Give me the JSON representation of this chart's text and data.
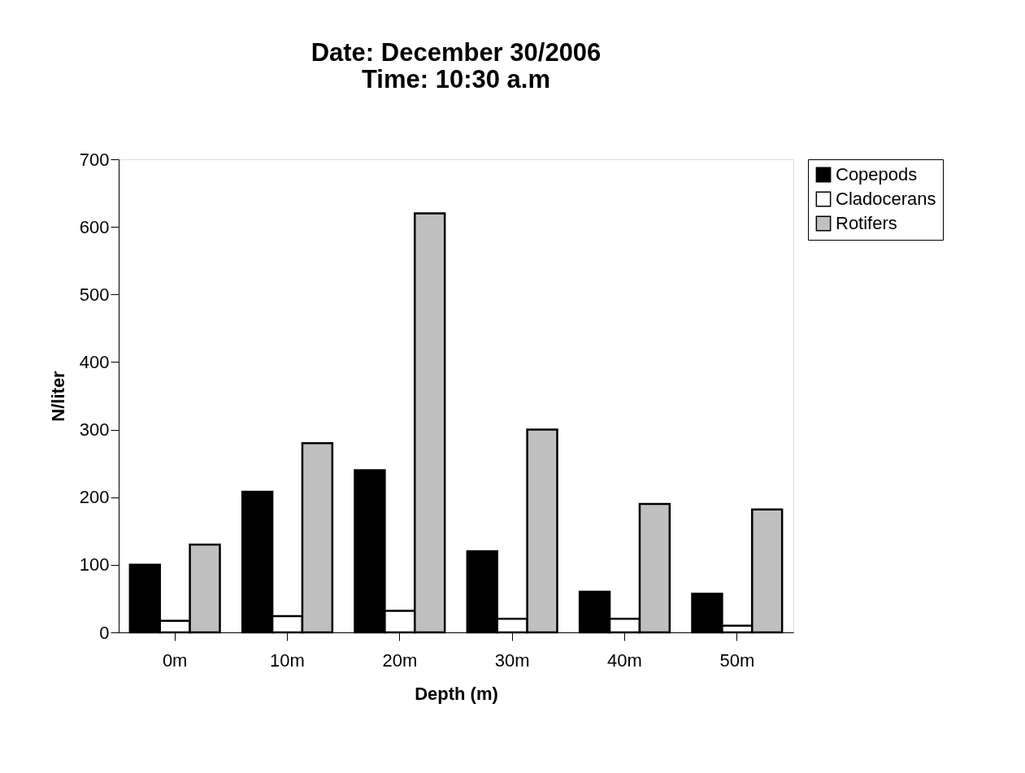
{
  "chart_data": {
    "type": "bar",
    "title": [
      "Date:   December 30/2006",
      "Time:    10:30 a.m"
    ],
    "xlabel": "Depth (m)",
    "ylabel": "N/liter",
    "categories": [
      "0m",
      "10m",
      "20m",
      "30m",
      "40m",
      "50m"
    ],
    "series": [
      {
        "name": "Copepods",
        "color": "#000000",
        "values": [
          100,
          208,
          240,
          120,
          60,
          57
        ]
      },
      {
        "name": "Cladocerans",
        "color": "#ffffff",
        "values": [
          17,
          24,
          32,
          20,
          20,
          10
        ]
      },
      {
        "name": "Rotifers",
        "color": "#c0c0c0",
        "values": [
          130,
          280,
          620,
          300,
          190,
          182
        ]
      }
    ],
    "ylim": [
      0,
      700
    ],
    "yticks": [
      0,
      100,
      200,
      300,
      400,
      500,
      600,
      700
    ],
    "grid": false,
    "legend": "right"
  }
}
